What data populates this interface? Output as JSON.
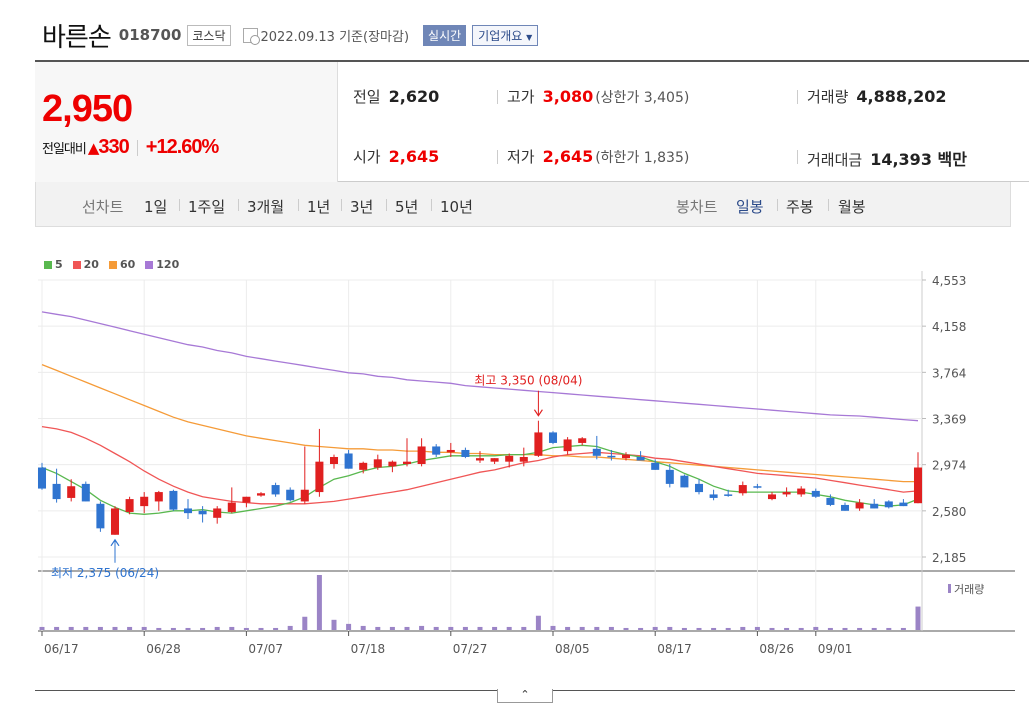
{
  "header": {
    "company": "바른손",
    "code": "018700",
    "market": "코스닥",
    "date_text": "2022.09.13 기준(장마감)",
    "realtime_label": "실시간",
    "overview_label": "기업개요"
  },
  "quote": {
    "price": "2,950",
    "diff_label": "전일대비",
    "diff_amount": "330",
    "diff_pct": "+12.60%",
    "prev_label": "전일",
    "prev_value": "2,620",
    "high_label": "고가",
    "high_value": "3,080",
    "upper_limit_text": "(상한가 3,405)",
    "volume_label": "거래량",
    "volume_value": "4,888,202",
    "open_label": "시가",
    "open_value": "2,645",
    "low_label": "저가",
    "low_value": "2,645",
    "lower_limit_text": "(하한가 1,835)",
    "amount_label": "거래대금",
    "amount_value": "14,393 백만"
  },
  "periods": {
    "line_chart_label": "선차트",
    "items": [
      "1일",
      "1주일",
      "3개월",
      "1년",
      "3년",
      "5년",
      "10년"
    ],
    "candle_chart_label": "봉차트",
    "candle_items": [
      "일봉",
      "주봉",
      "월봉"
    ],
    "active_candle": "일봉"
  },
  "colors": {
    "up": "#e02020",
    "down": "#2f74d0",
    "ma5": "#59b84f",
    "ma20": "#f05656",
    "ma60": "#f59b38",
    "ma120": "#a779d6",
    "volume": "#9b84c6"
  },
  "chart_data": {
    "type": "candlestick",
    "legend": [
      "5",
      "20",
      "60",
      "120"
    ],
    "y_ticks": [
      "4,553",
      "4,158",
      "3,764",
      "3,369",
      "2,974",
      "2,580",
      "2,185"
    ],
    "ylim": [
      2185,
      4553
    ],
    "x_ticks": [
      {
        "label": "06/17",
        "index": 0
      },
      {
        "label": "06/28",
        "index": 7
      },
      {
        "label": "07/07",
        "index": 14
      },
      {
        "label": "07/18",
        "index": 21
      },
      {
        "label": "07/27",
        "index": 28
      },
      {
        "label": "08/05",
        "index": 35
      },
      {
        "label": "08/17",
        "index": 42
      },
      {
        "label": "08/26",
        "index": 49
      },
      {
        "label": "09/01",
        "index": 53
      }
    ],
    "high_annotation": "최고 3,350 (08/04)",
    "high_index": 34,
    "high_value": 3350,
    "low_annotation": "최저 2,375 (06/24)",
    "low_index": 5,
    "low_value": 2375,
    "volume_label": "거래량",
    "candles": [
      {
        "o": 2950,
        "h": 2990,
        "l": 2760,
        "c": 2770
      },
      {
        "o": 2810,
        "h": 2940,
        "l": 2650,
        "c": 2680
      },
      {
        "o": 2690,
        "h": 2850,
        "l": 2660,
        "c": 2790
      },
      {
        "o": 2810,
        "h": 2830,
        "l": 2660,
        "c": 2660
      },
      {
        "o": 2640,
        "h": 2660,
        "l": 2400,
        "c": 2430
      },
      {
        "o": 2375,
        "h": 2620,
        "l": 2375,
        "c": 2600
      },
      {
        "o": 2570,
        "h": 2700,
        "l": 2550,
        "c": 2680
      },
      {
        "o": 2620,
        "h": 2740,
        "l": 2560,
        "c": 2700
      },
      {
        "o": 2660,
        "h": 2750,
        "l": 2580,
        "c": 2740
      },
      {
        "o": 2750,
        "h": 2760,
        "l": 2580,
        "c": 2590
      },
      {
        "o": 2600,
        "h": 2680,
        "l": 2510,
        "c": 2560
      },
      {
        "o": 2580,
        "h": 2620,
        "l": 2480,
        "c": 2550
      },
      {
        "o": 2520,
        "h": 2620,
        "l": 2470,
        "c": 2600
      },
      {
        "o": 2570,
        "h": 2780,
        "l": 2560,
        "c": 2650
      },
      {
        "o": 2650,
        "h": 2700,
        "l": 2610,
        "c": 2700
      },
      {
        "o": 2710,
        "h": 2740,
        "l": 2700,
        "c": 2730
      },
      {
        "o": 2800,
        "h": 2820,
        "l": 2700,
        "c": 2720
      },
      {
        "o": 2760,
        "h": 2780,
        "l": 2660,
        "c": 2670
      },
      {
        "o": 2660,
        "h": 3130,
        "l": 2640,
        "c": 2760
      },
      {
        "o": 2740,
        "h": 3280,
        "l": 2700,
        "c": 3000
      },
      {
        "o": 2980,
        "h": 3060,
        "l": 2940,
        "c": 3040
      },
      {
        "o": 3070,
        "h": 3100,
        "l": 2940,
        "c": 2940
      },
      {
        "o": 2930,
        "h": 3000,
        "l": 2900,
        "c": 2990
      },
      {
        "o": 2950,
        "h": 3060,
        "l": 2930,
        "c": 3020
      },
      {
        "o": 2960,
        "h": 3010,
        "l": 2910,
        "c": 3000
      },
      {
        "o": 2980,
        "h": 3200,
        "l": 2960,
        "c": 3000
      },
      {
        "o": 2980,
        "h": 3200,
        "l": 2960,
        "c": 3130
      },
      {
        "o": 3130,
        "h": 3150,
        "l": 3040,
        "c": 3060
      },
      {
        "o": 3080,
        "h": 3160,
        "l": 3040,
        "c": 3100
      },
      {
        "o": 3100,
        "h": 3120,
        "l": 3030,
        "c": 3040
      },
      {
        "o": 3010,
        "h": 3090,
        "l": 2990,
        "c": 3030
      },
      {
        "o": 3000,
        "h": 3030,
        "l": 2980,
        "c": 3030
      },
      {
        "o": 3000,
        "h": 3070,
        "l": 2950,
        "c": 3050
      },
      {
        "o": 3000,
        "h": 3120,
        "l": 2960,
        "c": 3040
      },
      {
        "o": 3050,
        "h": 3350,
        "l": 3040,
        "c": 3250
      },
      {
        "o": 3250,
        "h": 3260,
        "l": 3150,
        "c": 3160
      },
      {
        "o": 3090,
        "h": 3210,
        "l": 3060,
        "c": 3190
      },
      {
        "o": 3160,
        "h": 3210,
        "l": 3140,
        "c": 3200
      },
      {
        "o": 3110,
        "h": 3220,
        "l": 3020,
        "c": 3050
      },
      {
        "o": 3050,
        "h": 3100,
        "l": 3010,
        "c": 3040
      },
      {
        "o": 3030,
        "h": 3080,
        "l": 3010,
        "c": 3060
      },
      {
        "o": 3040,
        "h": 3090,
        "l": 3010,
        "c": 3010
      },
      {
        "o": 2990,
        "h": 3020,
        "l": 2930,
        "c": 2930
      },
      {
        "o": 2930,
        "h": 2980,
        "l": 2780,
        "c": 2810
      },
      {
        "o": 2880,
        "h": 2890,
        "l": 2780,
        "c": 2780
      },
      {
        "o": 2810,
        "h": 2850,
        "l": 2720,
        "c": 2740
      },
      {
        "o": 2720,
        "h": 2760,
        "l": 2670,
        "c": 2690
      },
      {
        "o": 2720,
        "h": 2760,
        "l": 2700,
        "c": 2710
      },
      {
        "o": 2730,
        "h": 2830,
        "l": 2710,
        "c": 2800
      },
      {
        "o": 2790,
        "h": 2810,
        "l": 2770,
        "c": 2780
      },
      {
        "o": 2680,
        "h": 2740,
        "l": 2670,
        "c": 2720
      },
      {
        "o": 2720,
        "h": 2780,
        "l": 2700,
        "c": 2740
      },
      {
        "o": 2720,
        "h": 2790,
        "l": 2700,
        "c": 2770
      },
      {
        "o": 2750,
        "h": 2770,
        "l": 2690,
        "c": 2700
      },
      {
        "o": 2690,
        "h": 2720,
        "l": 2620,
        "c": 2630
      },
      {
        "o": 2630,
        "h": 2650,
        "l": 2580,
        "c": 2580
      },
      {
        "o": 2600,
        "h": 2680,
        "l": 2580,
        "c": 2650
      },
      {
        "o": 2640,
        "h": 2680,
        "l": 2600,
        "c": 2600
      },
      {
        "o": 2660,
        "h": 2670,
        "l": 2600,
        "c": 2610
      },
      {
        "o": 2650,
        "h": 2680,
        "l": 2620,
        "c": 2620
      },
      {
        "o": 2645,
        "h": 3080,
        "l": 2645,
        "c": 2950
      }
    ],
    "volume": [
      3,
      3,
      3,
      3,
      3,
      3,
      3,
      3,
      2,
      2,
      2,
      2,
      3,
      3,
      2,
      2,
      2,
      4,
      13,
      54,
      10,
      6,
      4,
      3,
      3,
      3,
      4,
      3,
      3,
      3,
      3,
      3,
      3,
      3,
      14,
      4,
      3,
      3,
      3,
      3,
      2,
      2,
      3,
      3,
      2,
      2,
      2,
      2,
      3,
      3,
      2,
      2,
      2,
      3,
      2,
      2,
      2,
      2,
      2,
      2,
      23
    ],
    "ma5": [
      2950,
      2900,
      2830,
      2760,
      2670,
      2610,
      2560,
      2550,
      2560,
      2580,
      2580,
      2590,
      2570,
      2560,
      2580,
      2600,
      2620,
      2650,
      2700,
      2780,
      2850,
      2880,
      2920,
      2950,
      2960,
      2980,
      3010,
      3030,
      3050,
      3050,
      3050,
      3050,
      3060,
      3060,
      3080,
      3120,
      3130,
      3140,
      3130,
      3090,
      3060,
      3040,
      3000,
      2960,
      2900,
      2850,
      2790,
      2750,
      2740,
      2740,
      2740,
      2740,
      2740,
      2720,
      2700,
      2670,
      2650,
      2630,
      2620,
      2630,
      2680
    ],
    "ma20": [
      3300,
      3280,
      3250,
      3200,
      3140,
      3070,
      3000,
      2920,
      2850,
      2790,
      2740,
      2700,
      2680,
      2660,
      2650,
      2640,
      2640,
      2640,
      2640,
      2650,
      2660,
      2680,
      2700,
      2720,
      2740,
      2760,
      2790,
      2820,
      2850,
      2880,
      2910,
      2930,
      2960,
      2990,
      3010,
      3040,
      3060,
      3070,
      3080,
      3070,
      3060,
      3050,
      3030,
      3020,
      3000,
      2980,
      2960,
      2940,
      2920,
      2900,
      2890,
      2880,
      2870,
      2860,
      2840,
      2820,
      2800,
      2780,
      2760,
      2740,
      2750
    ],
    "ma60": [
      3830,
      3780,
      3730,
      3680,
      3630,
      3580,
      3530,
      3480,
      3430,
      3380,
      3340,
      3310,
      3280,
      3250,
      3220,
      3200,
      3180,
      3160,
      3140,
      3130,
      3120,
      3110,
      3110,
      3100,
      3100,
      3090,
      3090,
      3080,
      3080,
      3070,
      3070,
      3060,
      3060,
      3060,
      3060,
      3050,
      3050,
      3040,
      3040,
      3030,
      3020,
      3010,
      3000,
      2990,
      2980,
      2970,
      2960,
      2950,
      2940,
      2930,
      2920,
      2910,
      2900,
      2890,
      2880,
      2870,
      2860,
      2850,
      2840,
      2830,
      2830
    ],
    "ma120": [
      4280,
      4260,
      4240,
      4210,
      4180,
      4150,
      4120,
      4090,
      4060,
      4030,
      4000,
      3980,
      3950,
      3930,
      3900,
      3880,
      3860,
      3840,
      3820,
      3800,
      3780,
      3760,
      3750,
      3730,
      3720,
      3700,
      3690,
      3680,
      3670,
      3650,
      3640,
      3630,
      3620,
      3610,
      3600,
      3590,
      3580,
      3570,
      3560,
      3550,
      3540,
      3530,
      3520,
      3510,
      3500,
      3490,
      3480,
      3470,
      3460,
      3450,
      3440,
      3430,
      3420,
      3410,
      3400,
      3395,
      3390,
      3380,
      3370,
      3360,
      3350
    ]
  }
}
